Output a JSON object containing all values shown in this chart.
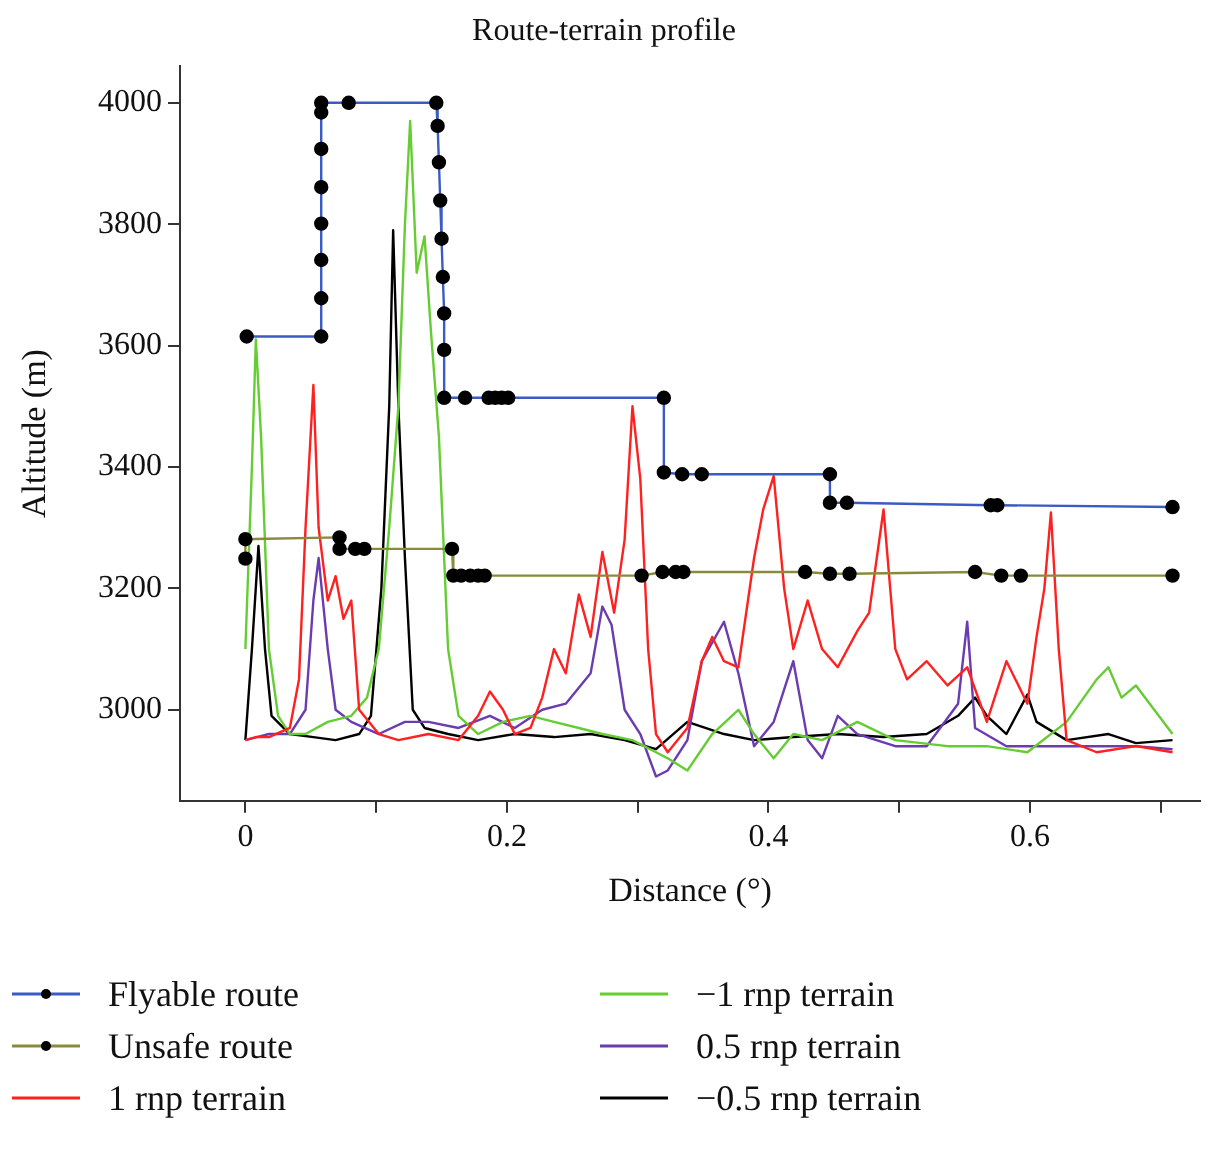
{
  "chart_data": {
    "type": "line",
    "title": "Route-terrain profile",
    "xlabel": "Distance (°)",
    "ylabel": "Altitude (m)",
    "xlim": [
      -0.05,
      0.73
    ],
    "xticks": [
      0,
      {
        "value": 0.1,
        "label": null
      },
      0.2,
      {
        "value": 0.3,
        "label": null
      },
      0.4,
      {
        "value": 0.5,
        "label": null
      },
      0.6,
      {
        "value": 0.7,
        "label": null
      }
    ],
    "ylim": [
      2850,
      4060
    ],
    "yticks": [
      3000,
      3200,
      3400,
      3600,
      3800,
      4000
    ],
    "grid": false,
    "legend": "bottom",
    "line_style": "solid",
    "series": [
      {
        "name": "Flyable route",
        "color": "#3b5bc4",
        "marker": "circle",
        "x": [
          0.001,
          0.058,
          0.058,
          0.058,
          0.058,
          0.058,
          0.058,
          0.058,
          0.058,
          0.079,
          0.146,
          0.147,
          0.148,
          0.149,
          0.15,
          0.151,
          0.152,
          0.152,
          0.152,
          0.168,
          0.186,
          0.191,
          0.196,
          0.201,
          0.32,
          0.32,
          0.334,
          0.349,
          0.447,
          0.447,
          0.46,
          0.57,
          0.575,
          0.709
        ],
        "values": [
          3615,
          3615,
          3678,
          3741,
          3801,
          3861,
          3924,
          3984,
          4000,
          4000,
          4000,
          3962,
          3902,
          3839,
          3776,
          3713,
          3653,
          3593,
          3514,
          3514,
          3514,
          3514,
          3514,
          3514,
          3514,
          3391,
          3388,
          3388,
          3388,
          3341,
          3341,
          3337,
          3337,
          3334
        ]
      },
      {
        "name": "Unsafe route",
        "color": "#8a8a3c",
        "marker": "circle",
        "x": [
          0.0,
          0.0,
          0.072,
          0.072,
          0.084,
          0.091,
          0.158,
          0.159,
          0.165,
          0.172,
          0.178,
          0.183,
          0.303,
          0.319,
          0.329,
          0.335,
          0.428,
          0.447,
          0.462,
          0.558,
          0.578,
          0.593,
          0.709
        ],
        "values": [
          3249,
          3281,
          3284,
          3265,
          3265,
          3265,
          3265,
          3221,
          3221,
          3221,
          3221,
          3221,
          3221,
          3227,
          3227,
          3227,
          3227,
          3224,
          3224,
          3227,
          3221,
          3221,
          3221
        ]
      },
      {
        "name": "1 rnp terrain",
        "color": "#ff2020",
        "marker": "none",
        "x": [
          0,
          0.008,
          0.018,
          0.034,
          0.041,
          0.046,
          0.052,
          0.056,
          0.063,
          0.069,
          0.075,
          0.081,
          0.087,
          0.102,
          0.117,
          0.14,
          0.163,
          0.178,
          0.187,
          0.197,
          0.206,
          0.218,
          0.227,
          0.236,
          0.245,
          0.255,
          0.264,
          0.273,
          0.282,
          0.29,
          0.296,
          0.302,
          0.308,
          0.314,
          0.323,
          0.338,
          0.349,
          0.357,
          0.366,
          0.377,
          0.389,
          0.396,
          0.404,
          0.412,
          0.419,
          0.43,
          0.441,
          0.453,
          0.468,
          0.477,
          0.488,
          0.497,
          0.506,
          0.521,
          0.537,
          0.552,
          0.567,
          0.582,
          0.598,
          0.605,
          0.611,
          0.616,
          0.622,
          0.628,
          0.651,
          0.681,
          0.709
        ],
        "values": [
          2950,
          2955,
          2955,
          2970,
          3050,
          3300,
          3535,
          3300,
          3180,
          3220,
          3150,
          3180,
          3000,
          2960,
          2950,
          2960,
          2950,
          2990,
          3030,
          3000,
          2960,
          2970,
          3020,
          3100,
          3060,
          3190,
          3120,
          3260,
          3160,
          3280,
          3500,
          3380,
          3100,
          2960,
          2930,
          2970,
          3080,
          3120,
          3080,
          3070,
          3250,
          3330,
          3385,
          3200,
          3100,
          3180,
          3100,
          3070,
          3130,
          3160,
          3330,
          3100,
          3050,
          3080,
          3040,
          3070,
          2980,
          3080,
          3010,
          3120,
          3200,
          3325,
          3100,
          2950,
          2930,
          2940,
          2930
        ]
      },
      {
        "name": "−1 rnp terrain",
        "color": "#66cc33",
        "marker": "none",
        "x": [
          0,
          0.005,
          0.008,
          0.012,
          0.018,
          0.025,
          0.034,
          0.046,
          0.063,
          0.081,
          0.093,
          0.102,
          0.11,
          0.117,
          0.122,
          0.126,
          0.131,
          0.137,
          0.142,
          0.148,
          0.155,
          0.163,
          0.178,
          0.197,
          0.218,
          0.236,
          0.255,
          0.273,
          0.296,
          0.314,
          0.323,
          0.338,
          0.357,
          0.377,
          0.389,
          0.404,
          0.419,
          0.441,
          0.468,
          0.497,
          0.537,
          0.567,
          0.598,
          0.628,
          0.651,
          0.66,
          0.67,
          0.681,
          0.695,
          0.709
        ],
        "values": [
          3100,
          3400,
          3610,
          3450,
          3100,
          2990,
          2960,
          2960,
          2980,
          2990,
          3020,
          3100,
          3300,
          3500,
          3800,
          3970,
          3720,
          3780,
          3620,
          3450,
          3100,
          2990,
          2960,
          2980,
          2990,
          2980,
          2970,
          2960,
          2950,
          2930,
          2920,
          2900,
          2960,
          3000,
          2960,
          2920,
          2960,
          2950,
          2980,
          2950,
          2940,
          2940,
          2930,
          2980,
          3050,
          3070,
          3020,
          3040,
          3000,
          2960
        ]
      },
      {
        "name": "0.5 rnp terrain",
        "color": "#6a3cb0",
        "marker": "none",
        "x": [
          0,
          0.018,
          0.034,
          0.046,
          0.052,
          0.056,
          0.063,
          0.069,
          0.081,
          0.102,
          0.122,
          0.14,
          0.163,
          0.187,
          0.206,
          0.227,
          0.245,
          0.264,
          0.273,
          0.28,
          0.29,
          0.302,
          0.314,
          0.323,
          0.338,
          0.349,
          0.366,
          0.377,
          0.389,
          0.404,
          0.419,
          0.43,
          0.441,
          0.453,
          0.468,
          0.497,
          0.521,
          0.545,
          0.552,
          0.558,
          0.582,
          0.628,
          0.681,
          0.709
        ],
        "values": [
          2950,
          2960,
          2960,
          3000,
          3180,
          3250,
          3100,
          3000,
          2980,
          2960,
          2980,
          2980,
          2970,
          2990,
          2970,
          3000,
          3010,
          3060,
          3170,
          3140,
          3000,
          2960,
          2890,
          2900,
          2950,
          3080,
          3145,
          3060,
          2940,
          2980,
          3080,
          2950,
          2920,
          2990,
          2960,
          2940,
          2940,
          3010,
          3145,
          2970,
          2940,
          2940,
          2940,
          2935
        ]
      },
      {
        "name": "−0.5 rnp terrain",
        "color": "#000000",
        "marker": "none",
        "x": [
          0,
          0.005,
          0.01,
          0.015,
          0.02,
          0.034,
          0.052,
          0.069,
          0.087,
          0.096,
          0.104,
          0.11,
          0.113,
          0.117,
          0.122,
          0.128,
          0.137,
          0.155,
          0.178,
          0.206,
          0.236,
          0.264,
          0.29,
          0.314,
          0.338,
          0.366,
          0.389,
          0.419,
          0.453,
          0.488,
          0.521,
          0.545,
          0.558,
          0.567,
          0.582,
          0.598,
          0.605,
          0.628,
          0.66,
          0.681,
          0.709
        ],
        "values": [
          2950,
          3100,
          3270,
          3100,
          2990,
          2960,
          2955,
          2950,
          2960,
          2990,
          3200,
          3500,
          3790,
          3500,
          3250,
          3000,
          2970,
          2960,
          2950,
          2960,
          2955,
          2960,
          2950,
          2935,
          2980,
          2960,
          2950,
          2955,
          2960,
          2955,
          2960,
          2990,
          3020,
          2990,
          2960,
          3025,
          2980,
          2950,
          2960,
          2945,
          2950
        ]
      }
    ]
  }
}
